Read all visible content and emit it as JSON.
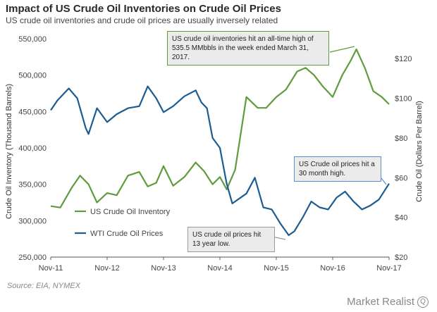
{
  "title": "Impact of US Crude Oil Inventories on Crude Oil Prices",
  "subtitle": "US crude oil inventories and crude oil prices are usually inversely related",
  "source": "Source: EIA, NYMEX",
  "brand": "Market Realist",
  "brand_mark": "Q",
  "colors": {
    "inventory": "#5f9c3d",
    "price": "#1b5c92",
    "callout_green": "#5f9c3d",
    "callout_blue": "#5a8fcc"
  },
  "annotations": {
    "peak": "US crude oil inventories hit an all-time high of 535.5 MMbbls in the week ended March 31, 2017.",
    "high": "US Crude oil prices hit a 30 month high.",
    "low": "US crude oil prices hit 13 year low."
  },
  "chart_data": {
    "type": "line",
    "title": "Impact of US Crude Oil Inventories on Crude Oil Prices",
    "subtitle": "US crude oil inventories and crude oil prices are usually inversely related",
    "x_ticks": [
      "Nov-11",
      "Nov-12",
      "Nov-13",
      "Nov-14",
      "Nov-15",
      "Nov-16",
      "Nov-17"
    ],
    "y_left": {
      "label": "Crude Oil Inventory (Thousand Barrels)",
      "range": [
        250000,
        550000
      ],
      "ticks": [
        "250,000",
        "300,000",
        "350,000",
        "400,000",
        "450,000",
        "500,000",
        "550,000"
      ]
    },
    "y_right": {
      "label": "Crude Oil (Dollars Per Barrel)",
      "range": [
        20,
        130
      ],
      "ticks": [
        "$20",
        "$40",
        "$60",
        "$80",
        "$100",
        "$120"
      ]
    },
    "legend_placement": "left, inside plot",
    "grid": false,
    "series": [
      {
        "name": "US Crude Oil Inventory",
        "axis": "left",
        "x": [
          2011.83,
          2012.0,
          2012.2,
          2012.35,
          2012.5,
          2012.65,
          2012.83,
          2013.0,
          2013.2,
          2013.4,
          2013.55,
          2013.7,
          2013.83,
          2014.0,
          2014.2,
          2014.4,
          2014.55,
          2014.7,
          2014.83,
          2014.95,
          2015.1,
          2015.3,
          2015.5,
          2015.65,
          2015.83,
          2016.0,
          2016.2,
          2016.35,
          2016.5,
          2016.65,
          2016.83,
          2017.0,
          2017.15,
          2017.25,
          2017.4,
          2017.55,
          2017.7,
          2017.83
        ],
        "y": [
          320000,
          318000,
          345000,
          362000,
          350000,
          325000,
          338000,
          335000,
          362000,
          367000,
          347000,
          352000,
          375000,
          348000,
          360000,
          380000,
          368000,
          350000,
          360000,
          343000,
          370000,
          470000,
          455000,
          455000,
          470000,
          480000,
          505000,
          510000,
          500000,
          485000,
          470000,
          500000,
          520000,
          535500,
          510000,
          478000,
          470000,
          460000
        ]
      },
      {
        "name": "WTI Crude Oil Prices",
        "axis": "right",
        "x": [
          2011.83,
          2011.95,
          2012.15,
          2012.3,
          2012.45,
          2012.5,
          2012.65,
          2012.83,
          2013.0,
          2013.2,
          2013.4,
          2013.55,
          2013.7,
          2013.83,
          2014.0,
          2014.2,
          2014.4,
          2014.5,
          2014.6,
          2014.7,
          2014.83,
          2014.95,
          2015.05,
          2015.3,
          2015.45,
          2015.6,
          2015.75,
          2015.9,
          2016.05,
          2016.15,
          2016.3,
          2016.45,
          2016.6,
          2016.75,
          2016.9,
          2017.05,
          2017.2,
          2017.35,
          2017.5,
          2017.65,
          2017.83
        ],
        "y": [
          94,
          99,
          105,
          100,
          85,
          82,
          95,
          88,
          92,
          95,
          96,
          106,
          100,
          93,
          96,
          101,
          104,
          98,
          95,
          80,
          75,
          57,
          47,
          52,
          60,
          45,
          44,
          37,
          31,
          33,
          40,
          48,
          45,
          44,
          50,
          53,
          48,
          44,
          46,
          49,
          57
        ]
      }
    ]
  }
}
